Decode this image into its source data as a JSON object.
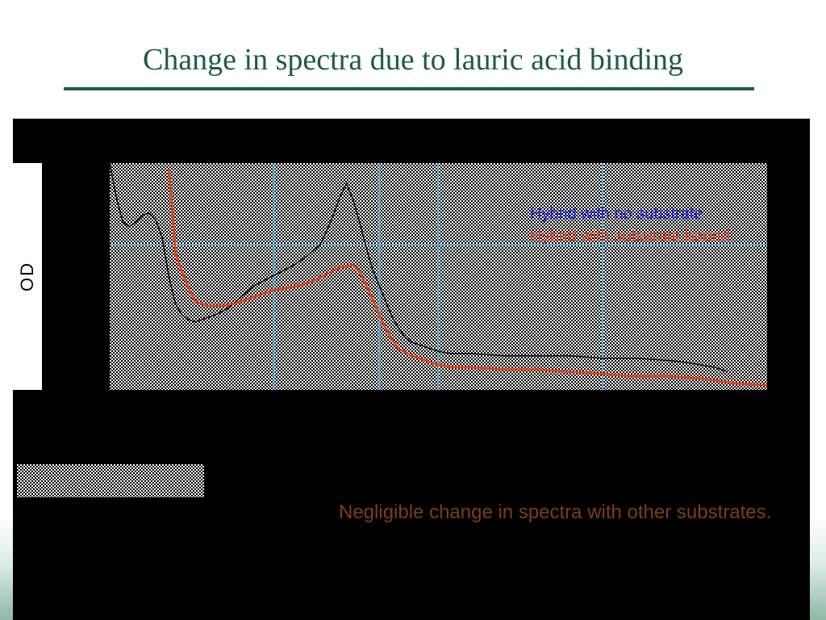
{
  "slide": {
    "title": "Change in spectra due to lauric acid binding",
    "caption": "Negligible change in spectra with other substrates."
  },
  "colors": {
    "title": "#1d5b48",
    "caption": "#7a3e16",
    "gridline": "#5fb0d8",
    "series_no_substrate": "#000000",
    "series_substrate_bound": "#e0401c",
    "legend_no_substrate": "#1e1ee0",
    "legend_substrate_bound": "#e0401c"
  },
  "chart_data": {
    "type": "line",
    "title": "",
    "xlabel": "",
    "ylabel": "OD",
    "xlim": [
      0,
      100
    ],
    "ylim": [
      0,
      100
    ],
    "grid": true,
    "grid_x": [
      25,
      41,
      50,
      75
    ],
    "grid_y": [
      64
    ],
    "legend_position": "top-right",
    "series": [
      {
        "name": "Hybrid with no substrate",
        "x": [
          0,
          1,
          2,
          3,
          4,
          5,
          6,
          7,
          8,
          9,
          10,
          11,
          12,
          13,
          14,
          16,
          18,
          20,
          22,
          24,
          26,
          28,
          30,
          32,
          33,
          34,
          35,
          36,
          37,
          38,
          39,
          40,
          41,
          42,
          43,
          44,
          45,
          46,
          47,
          48,
          49,
          50,
          52,
          55,
          60,
          65,
          70,
          75,
          80,
          85,
          88,
          90,
          92,
          94
        ],
        "y": [
          100,
          85,
          74,
          72,
          74,
          77,
          78,
          75,
          67,
          50,
          38,
          33,
          31,
          30,
          31,
          33,
          36,
          41,
          46,
          49,
          52,
          55,
          59,
          64,
          70,
          77,
          85,
          91,
          84,
          74,
          63,
          53,
          46,
          39,
          32,
          27,
          23,
          21,
          20,
          19,
          18,
          17,
          16,
          16,
          15,
          15,
          15,
          14,
          14,
          13,
          12,
          11,
          10,
          8
        ]
      },
      {
        "name": "Hybrid with substrate bound",
        "x": [
          9,
          9.5,
          10,
          11,
          12,
          13,
          15,
          17,
          19,
          21,
          23,
          25,
          27,
          29,
          31,
          33,
          35,
          37,
          38,
          39,
          40,
          41,
          42,
          43,
          44,
          46,
          48,
          50,
          52,
          55,
          60,
          65,
          70,
          75,
          80,
          85,
          90,
          95,
          100
        ],
        "y": [
          97,
          80,
          60,
          52,
          45,
          39,
          37,
          37,
          38,
          40,
          42,
          44,
          45,
          46,
          48,
          51,
          54,
          55,
          52,
          46,
          40,
          33,
          27,
          22,
          18,
          15,
          13,
          11,
          10,
          10,
          9,
          9,
          8,
          7,
          6,
          6,
          5,
          3,
          2
        ]
      }
    ]
  }
}
